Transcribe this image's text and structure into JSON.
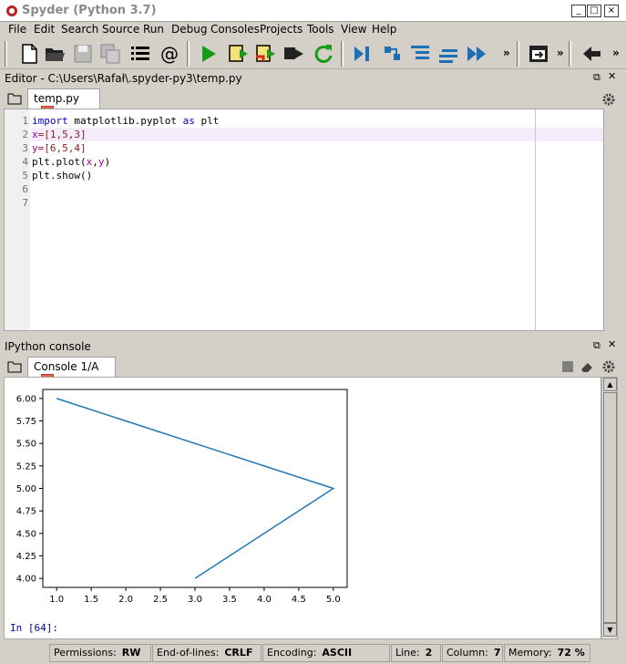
{
  "window": {
    "title": "Spyder (Python 3.7)",
    "controls": [
      "_",
      "□",
      "×"
    ]
  },
  "menu": [
    "File",
    "Edit",
    "Search",
    "Source",
    "Run",
    "Debug",
    "Consoles",
    "Projects",
    "Tools",
    "View",
    "Help"
  ],
  "toolbar": {
    "icons": [
      "new-file-icon",
      "open-folder-icon",
      "save-icon",
      "save-all-icon",
      "outline-list-icon",
      "at-symbol-icon",
      "run-icon",
      "run-cell-icon",
      "run-cell-advance-icon",
      "run-selection-icon",
      "rerun-icon",
      "debug-icon",
      "step-icon",
      "step-into-icon",
      "step-return-icon",
      "continue-icon",
      "maximize-pane-icon",
      "back-arrow-icon"
    ],
    "more_label": "»"
  },
  "editor": {
    "title": "Editor - C:\\Users\\Rafał\\.spyder-py3\\temp.py",
    "tab_label": "temp.py",
    "tab_close": "×",
    "lines": [
      "1",
      "2",
      "3",
      "4",
      "5",
      "6",
      "7"
    ],
    "code": {
      "l1_kw1": "import",
      "l1_mid": " matplotlib.pyplot ",
      "l1_kw2": "as",
      "l1_end": " plt",
      "l2_var": "x",
      "l2_rest": "=[1,5,3]",
      "l3_var": "y",
      "l3_rest": "=[6,5,4]",
      "l4_pre": "plt.plot(",
      "l4_var1": "x",
      "l4_comma": ",",
      "l4_var2": "y",
      "l4_post": ")",
      "l5": "plt.show()"
    }
  },
  "console": {
    "title": "IPython console",
    "tab_label": "Console 1/A",
    "tab_close": "×",
    "prompt": "In [64]:"
  },
  "chart_data": {
    "type": "line",
    "series": [
      {
        "x": [
          1,
          5,
          3
        ],
        "y": [
          6,
          5,
          4
        ],
        "color": "#1f77b4"
      }
    ],
    "xlim": [
      0.8,
      5.2
    ],
    "ylim": [
      3.9,
      6.1
    ],
    "xticks": [
      "1.0",
      "1.5",
      "2.0",
      "2.5",
      "3.0",
      "3.5",
      "4.0",
      "4.5",
      "5.0"
    ],
    "yticks": [
      "4.00",
      "4.25",
      "4.50",
      "4.75",
      "5.00",
      "5.25",
      "5.50",
      "5.75",
      "6.00"
    ],
    "grid": false
  },
  "status": {
    "permissions_label": "Permissions:",
    "permissions": "RW",
    "eol_label": "End-of-lines:",
    "eol": "CRLF",
    "encoding_label": "Encoding:",
    "encoding": "ASCII",
    "line_label": "Line:",
    "line": "2",
    "column_label": "Column:",
    "column": "7",
    "memory_label": "Memory:",
    "memory": "72 %"
  }
}
